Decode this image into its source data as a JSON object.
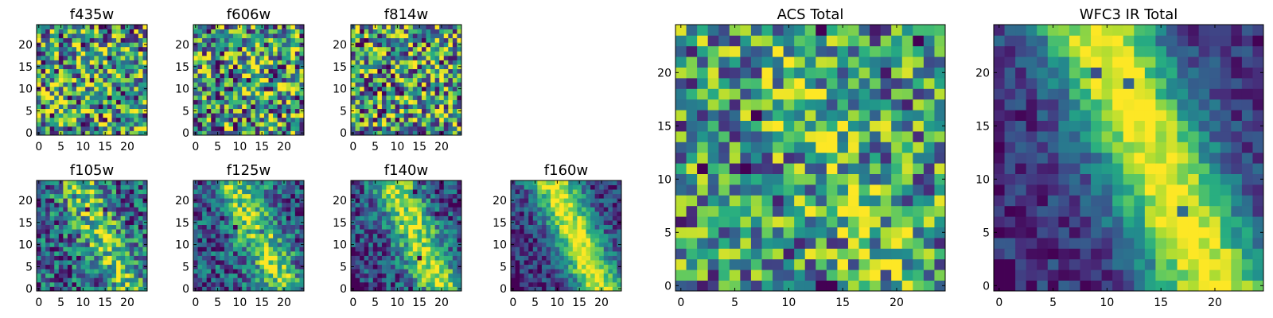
{
  "chart_data": [
    {
      "type": "heatmap",
      "title": "f435w",
      "xlim": [
        -0.5,
        24.5
      ],
      "ylim": [
        -0.5,
        24.5
      ],
      "xticks": [
        0,
        5,
        10,
        15,
        20
      ],
      "yticks": [
        0,
        5,
        10,
        15,
        20
      ],
      "seed": 11,
      "noise": 0.55,
      "ridge": 0.0,
      "grid_size": 25,
      "colormap": "viridis",
      "grid": false
    },
    {
      "type": "heatmap",
      "title": "f606w",
      "xlim": [
        -0.5,
        24.5
      ],
      "ylim": [
        -0.5,
        24.5
      ],
      "xticks": [
        0,
        5,
        10,
        15,
        20
      ],
      "yticks": [
        0,
        5,
        10,
        15,
        20
      ],
      "seed": 23,
      "noise": 0.55,
      "ridge": 0.05,
      "grid_size": 25,
      "colormap": "viridis",
      "grid": false
    },
    {
      "type": "heatmap",
      "title": "f814w",
      "xlim": [
        -0.5,
        24.5
      ],
      "ylim": [
        -0.5,
        24.5
      ],
      "xticks": [
        0,
        5,
        10,
        15,
        20
      ],
      "yticks": [
        0,
        5,
        10,
        15,
        20
      ],
      "seed": 37,
      "noise": 0.55,
      "ridge": 0.08,
      "grid_size": 25,
      "colormap": "viridis",
      "grid": false
    },
    {
      "type": "heatmap",
      "title": "f105w",
      "xlim": [
        -0.5,
        24.5
      ],
      "ylim": [
        -0.5,
        24.5
      ],
      "xticks": [
        0,
        5,
        10,
        15,
        20
      ],
      "yticks": [
        0,
        5,
        10,
        15,
        20
      ],
      "seed": 41,
      "noise": 0.38,
      "ridge": 0.45,
      "grid_size": 25,
      "colormap": "viridis",
      "grid": false
    },
    {
      "type": "heatmap",
      "title": "f125w",
      "xlim": [
        -0.5,
        24.5
      ],
      "ylim": [
        -0.5,
        24.5
      ],
      "xticks": [
        0,
        5,
        10,
        15,
        20
      ],
      "yticks": [
        0,
        5,
        10,
        15,
        20
      ],
      "seed": 53,
      "noise": 0.32,
      "ridge": 0.55,
      "grid_size": 25,
      "colormap": "viridis",
      "grid": false
    },
    {
      "type": "heatmap",
      "title": "f140w",
      "xlim": [
        -0.5,
        24.5
      ],
      "ylim": [
        -0.5,
        24.5
      ],
      "xticks": [
        0,
        5,
        10,
        15,
        20
      ],
      "yticks": [
        0,
        5,
        10,
        15,
        20
      ],
      "seed": 67,
      "noise": 0.28,
      "ridge": 0.65,
      "grid_size": 25,
      "colormap": "viridis",
      "grid": false
    },
    {
      "type": "heatmap",
      "title": "f160w",
      "xlim": [
        -0.5,
        24.5
      ],
      "ylim": [
        -0.5,
        24.5
      ],
      "xticks": [
        0,
        5,
        10,
        15,
        20
      ],
      "yticks": [
        0,
        5,
        10,
        15,
        20
      ],
      "seed": 79,
      "noise": 0.22,
      "ridge": 0.8,
      "grid_size": 25,
      "colormap": "viridis",
      "grid": false
    },
    {
      "type": "heatmap",
      "title": "ACS Total",
      "xlim": [
        -0.5,
        24.5
      ],
      "ylim": [
        -0.5,
        24.5
      ],
      "xticks": [
        0,
        5,
        10,
        15,
        20
      ],
      "yticks": [
        0,
        5,
        10,
        15,
        20
      ],
      "seed": 97,
      "noise": 0.45,
      "ridge": 0.15,
      "grid_size": 25,
      "colormap": "viridis",
      "grid": false
    },
    {
      "type": "heatmap",
      "title": "WFC3 IR Total",
      "xlim": [
        -0.5,
        24.5
      ],
      "ylim": [
        -0.5,
        24.5
      ],
      "xticks": [
        0,
        5,
        10,
        15,
        20
      ],
      "yticks": [
        0,
        5,
        10,
        15,
        20
      ],
      "seed": 113,
      "noise": 0.16,
      "ridge": 0.85,
      "grid_size": 25,
      "colormap": "viridis",
      "grid": false
    }
  ]
}
